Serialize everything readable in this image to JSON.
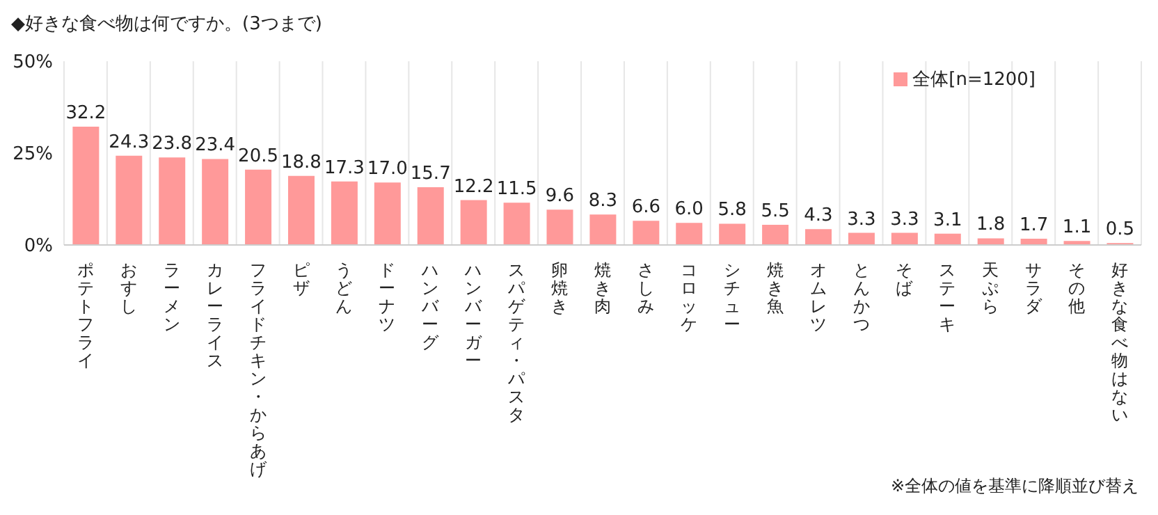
{
  "chart_data": {
    "type": "bar",
    "title": "◆好きな食べ物は何ですか。(3つまで)",
    "categories": [
      "ポテトフライ",
      "おすし",
      "ラーメン",
      "カレーライス",
      "フライドチキン・からあげ",
      "ピザ",
      "うどん",
      "ドーナツ",
      "ハンバーグ",
      "ハンバーガー",
      "スパゲティ・パスタ",
      "卵焼き",
      "焼き肉",
      "さしみ",
      "コロッケ",
      "シチュー",
      "焼き魚",
      "オムレツ",
      "とんかつ",
      "そば",
      "ステーキ",
      "天ぷら",
      "サラダ",
      "その他",
      "好きな食べ物はない"
    ],
    "series": [
      {
        "name": "全体[n=1200]",
        "color": "#ff9999",
        "values": [
          32.2,
          24.3,
          23.8,
          23.4,
          20.5,
          18.8,
          17.3,
          17.0,
          15.7,
          12.2,
          11.5,
          9.6,
          8.3,
          6.6,
          6.0,
          5.8,
          5.5,
          4.3,
          3.3,
          3.3,
          3.1,
          1.8,
          1.7,
          1.1,
          0.5
        ],
        "value_labels": [
          "32.2",
          "24.3",
          "23.8",
          "23.4",
          "20.5",
          "18.8",
          "17.3",
          "17.0",
          "15.7",
          "12.2",
          "11.5",
          "9.6",
          "8.3",
          "6.6",
          "6.0",
          "5.8",
          "5.5",
          "4.3",
          "3.3",
          "3.3",
          "3.1",
          "1.8",
          "1.7",
          "1.1",
          "0.5"
        ]
      }
    ],
    "ylim": [
      0,
      50
    ],
    "yticks": [
      {
        "value": 0,
        "label": "0%"
      },
      {
        "value": 25,
        "label": "25%"
      },
      {
        "value": 50,
        "label": "50%"
      }
    ],
    "grid": "x",
    "legend": "top right",
    "annotations": [
      "※全体の値を基準に降順並び替え"
    ]
  }
}
